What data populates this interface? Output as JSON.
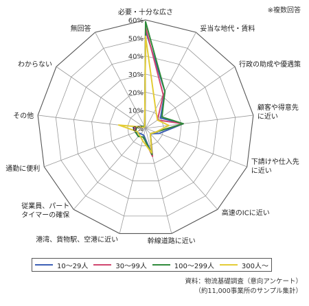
{
  "note": "※複数回答",
  "source_line1": "資料：物流基礎調査（意向アンケート）",
  "source_line2": "（約11,000事業所のサンプル集計）",
  "chart_data": {
    "type": "radar",
    "axes": [
      "必要・十分な広さ",
      "妥当な地代・賃料",
      "行政の助成や優遇策",
      "顧客や得意先に近い",
      "下請けや仕入先に近い",
      "高速のICに近い",
      "幹線道路に近い",
      "港湾、貨物駅、空港に近い",
      "従業員、パートタイマーの確保",
      "通勤に便利",
      "その他",
      "わからない",
      "無回答"
    ],
    "ticks": [
      "0%",
      "10%",
      "20%",
      "30%",
      "40%",
      "50%",
      "60%"
    ],
    "rmax": 60,
    "series": [
      {
        "name": "10〜29人",
        "color": "#3b5fb5",
        "values": [
          54,
          23,
          10,
          21,
          8,
          4,
          15,
          4,
          4,
          6,
          7,
          2,
          1
        ]
      },
      {
        "name": "30〜99人",
        "color": "#d0456e",
        "values": [
          56,
          21,
          8,
          21,
          6,
          4,
          16,
          5,
          6,
          6,
          6,
          2,
          1
        ]
      },
      {
        "name": "100〜299人",
        "color": "#2e8a3a",
        "values": [
          59,
          23,
          11,
          21,
          6,
          4,
          15,
          5,
          6,
          6,
          5,
          2,
          1
        ]
      },
      {
        "name": "300人〜",
        "color": "#e3cc35",
        "values": [
          51,
          12,
          8,
          13,
          6,
          4,
          14,
          7,
          5,
          5,
          15,
          1,
          1
        ]
      }
    ]
  }
}
